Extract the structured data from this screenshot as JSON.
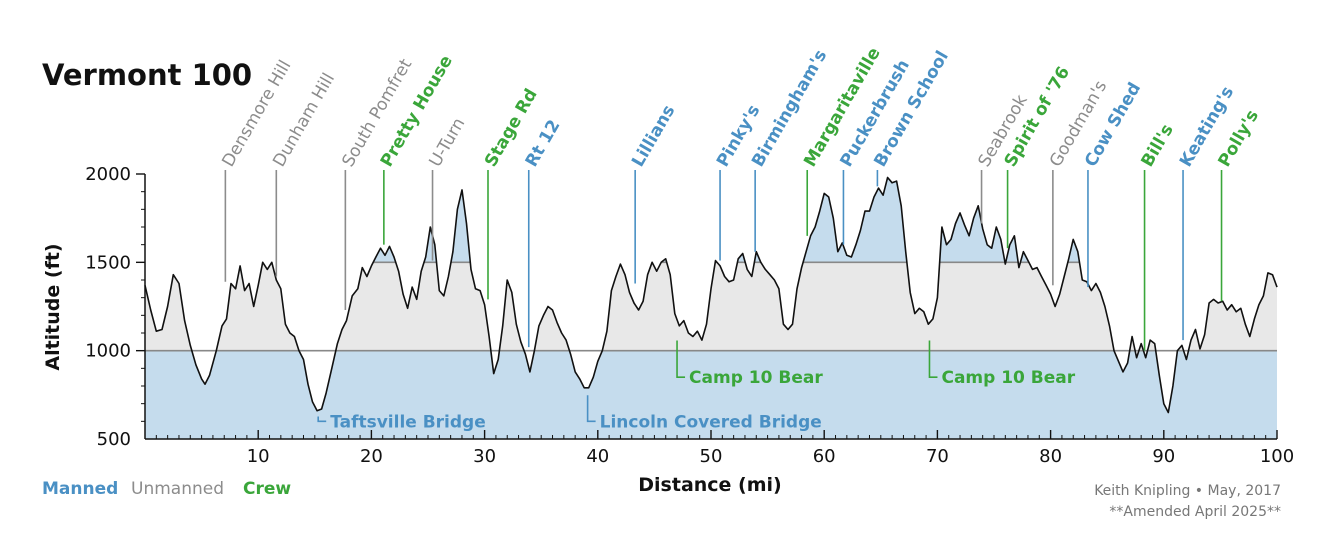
{
  "colors": {
    "manned": "#4a90c4",
    "unmanned": "#8c8c8c",
    "crew": "#3aa63a",
    "below_fill": "#c5dced",
    "mid_fill": "#e8e8e8",
    "above_fill": "#c5dced",
    "threshold_line": "#888888",
    "profile": "#111111"
  },
  "legend": {
    "manned": "Manned",
    "unmanned": "Unmanned",
    "crew": "Crew"
  },
  "credit": {
    "line1": "Keith Knipling • May, 2017",
    "line2": "**Amended April 2025**"
  },
  "chart_data": {
    "type": "area",
    "title": "Vermont 100",
    "xlabel": "Distance  (mi)",
    "ylabel": "Altitude  (ft)",
    "xlim": [
      0,
      100
    ],
    "ylim": [
      500,
      2000
    ],
    "x_ticks": [
      10,
      20,
      30,
      40,
      50,
      60,
      70,
      80,
      90,
      100
    ],
    "y_ticks": [
      500,
      1000,
      1500,
      2000
    ],
    "thresholds": [
      1000,
      1500
    ],
    "grid": false,
    "profile": [
      [
        0,
        1370
      ],
      [
        0.5,
        1230
      ],
      [
        1,
        1110
      ],
      [
        1.5,
        1120
      ],
      [
        2,
        1250
      ],
      [
        2.5,
        1430
      ],
      [
        3,
        1380
      ],
      [
        3.5,
        1170
      ],
      [
        4,
        1030
      ],
      [
        4.5,
        920
      ],
      [
        5,
        840
      ],
      [
        5.3,
        810
      ],
      [
        5.7,
        860
      ],
      [
        6.3,
        1000
      ],
      [
        6.8,
        1140
      ],
      [
        7.2,
        1180
      ],
      [
        7.6,
        1380
      ],
      [
        8,
        1350
      ],
      [
        8.4,
        1480
      ],
      [
        8.8,
        1340
      ],
      [
        9.2,
        1380
      ],
      [
        9.6,
        1250
      ],
      [
        10,
        1370
      ],
      [
        10.4,
        1500
      ],
      [
        10.8,
        1460
      ],
      [
        11.2,
        1500
      ],
      [
        11.6,
        1400
      ],
      [
        12,
        1350
      ],
      [
        12.4,
        1150
      ],
      [
        12.8,
        1100
      ],
      [
        13.2,
        1080
      ],
      [
        13.6,
        1000
      ],
      [
        14,
        950
      ],
      [
        14.4,
        810
      ],
      [
        14.8,
        710
      ],
      [
        15.2,
        660
      ],
      [
        15.6,
        670
      ],
      [
        16,
        760
      ],
      [
        16.5,
        900
      ],
      [
        17,
        1040
      ],
      [
        17.4,
        1120
      ],
      [
        17.8,
        1170
      ],
      [
        18.3,
        1310
      ],
      [
        18.8,
        1350
      ],
      [
        19.2,
        1470
      ],
      [
        19.6,
        1420
      ],
      [
        20,
        1480
      ],
      [
        20.4,
        1530
      ],
      [
        20.8,
        1580
      ],
      [
        21.2,
        1540
      ],
      [
        21.6,
        1590
      ],
      [
        22,
        1530
      ],
      [
        22.4,
        1450
      ],
      [
        22.8,
        1320
      ],
      [
        23.2,
        1240
      ],
      [
        23.6,
        1360
      ],
      [
        24,
        1290
      ],
      [
        24.4,
        1450
      ],
      [
        24.8,
        1530
      ],
      [
        25.2,
        1700
      ],
      [
        25.6,
        1600
      ],
      [
        26,
        1340
      ],
      [
        26.4,
        1310
      ],
      [
        26.8,
        1420
      ],
      [
        27.2,
        1560
      ],
      [
        27.6,
        1800
      ],
      [
        28,
        1910
      ],
      [
        28.4,
        1720
      ],
      [
        28.8,
        1460
      ],
      [
        29.2,
        1350
      ],
      [
        29.6,
        1340
      ],
      [
        30,
        1260
      ],
      [
        30.4,
        1080
      ],
      [
        30.8,
        870
      ],
      [
        31.2,
        950
      ],
      [
        31.6,
        1140
      ],
      [
        32,
        1400
      ],
      [
        32.4,
        1330
      ],
      [
        32.8,
        1150
      ],
      [
        33.2,
        1050
      ],
      [
        33.6,
        980
      ],
      [
        34,
        880
      ],
      [
        34.4,
        1000
      ],
      [
        34.8,
        1140
      ],
      [
        35.2,
        1200
      ],
      [
        35.6,
        1250
      ],
      [
        36,
        1230
      ],
      [
        36.4,
        1160
      ],
      [
        36.8,
        1100
      ],
      [
        37.2,
        1060
      ],
      [
        37.6,
        980
      ],
      [
        38,
        880
      ],
      [
        38.4,
        840
      ],
      [
        38.8,
        790
      ],
      [
        39.2,
        790
      ],
      [
        39.6,
        850
      ],
      [
        40,
        940
      ],
      [
        40.4,
        1000
      ],
      [
        40.8,
        1110
      ],
      [
        41.2,
        1340
      ],
      [
        41.6,
        1420
      ],
      [
        42,
        1490
      ],
      [
        42.4,
        1430
      ],
      [
        42.8,
        1330
      ],
      [
        43.2,
        1270
      ],
      [
        43.6,
        1230
      ],
      [
        44,
        1280
      ],
      [
        44.4,
        1430
      ],
      [
        44.8,
        1500
      ],
      [
        45.2,
        1450
      ],
      [
        45.6,
        1500
      ],
      [
        46,
        1520
      ],
      [
        46.4,
        1430
      ],
      [
        46.8,
        1210
      ],
      [
        47.2,
        1140
      ],
      [
        47.6,
        1170
      ],
      [
        48,
        1100
      ],
      [
        48.4,
        1080
      ],
      [
        48.8,
        1110
      ],
      [
        49.2,
        1060
      ],
      [
        49.6,
        1150
      ],
      [
        50,
        1350
      ],
      [
        50.4,
        1510
      ],
      [
        50.8,
        1480
      ],
      [
        51.2,
        1420
      ],
      [
        51.6,
        1390
      ],
      [
        52,
        1400
      ],
      [
        52.4,
        1520
      ],
      [
        52.8,
        1550
      ],
      [
        53.2,
        1460
      ],
      [
        53.6,
        1420
      ],
      [
        54,
        1560
      ],
      [
        54.4,
        1500
      ],
      [
        54.8,
        1460
      ],
      [
        55.2,
        1430
      ],
      [
        55.6,
        1400
      ],
      [
        56,
        1350
      ],
      [
        56.4,
        1150
      ],
      [
        56.8,
        1120
      ],
      [
        57.2,
        1150
      ],
      [
        57.6,
        1350
      ],
      [
        58,
        1470
      ],
      [
        58.4,
        1560
      ],
      [
        58.8,
        1650
      ],
      [
        59.2,
        1700
      ],
      [
        59.6,
        1790
      ],
      [
        60,
        1890
      ],
      [
        60.4,
        1870
      ],
      [
        60.8,
        1750
      ],
      [
        61.2,
        1560
      ],
      [
        61.6,
        1610
      ],
      [
        62,
        1540
      ],
      [
        62.4,
        1530
      ],
      [
        62.8,
        1600
      ],
      [
        63.2,
        1680
      ],
      [
        63.6,
        1790
      ],
      [
        64,
        1790
      ],
      [
        64.4,
        1870
      ],
      [
        64.8,
        1920
      ],
      [
        65.2,
        1880
      ],
      [
        65.6,
        1980
      ],
      [
        66,
        1950
      ],
      [
        66.4,
        1960
      ],
      [
        66.8,
        1820
      ],
      [
        67.2,
        1560
      ],
      [
        67.6,
        1330
      ],
      [
        68,
        1210
      ],
      [
        68.4,
        1240
      ],
      [
        68.8,
        1220
      ],
      [
        69.2,
        1150
      ],
      [
        69.6,
        1180
      ],
      [
        70,
        1300
      ],
      [
        70.4,
        1700
      ],
      [
        70.8,
        1600
      ],
      [
        71.2,
        1630
      ],
      [
        71.6,
        1720
      ],
      [
        72,
        1780
      ],
      [
        72.4,
        1710
      ],
      [
        72.8,
        1650
      ],
      [
        73.2,
        1750
      ],
      [
        73.6,
        1820
      ],
      [
        74,
        1690
      ],
      [
        74.4,
        1600
      ],
      [
        74.8,
        1580
      ],
      [
        75.2,
        1700
      ],
      [
        75.6,
        1630
      ],
      [
        76,
        1490
      ],
      [
        76.4,
        1600
      ],
      [
        76.8,
        1650
      ],
      [
        77.2,
        1470
      ],
      [
        77.6,
        1560
      ],
      [
        78,
        1510
      ],
      [
        78.4,
        1460
      ],
      [
        78.8,
        1470
      ],
      [
        79.2,
        1420
      ],
      [
        79.6,
        1370
      ],
      [
        80,
        1320
      ],
      [
        80.4,
        1250
      ],
      [
        80.8,
        1320
      ],
      [
        81.2,
        1420
      ],
      [
        81.6,
        1520
      ],
      [
        82,
        1630
      ],
      [
        82.4,
        1560
      ],
      [
        82.8,
        1400
      ],
      [
        83.2,
        1390
      ],
      [
        83.6,
        1340
      ],
      [
        84,
        1380
      ],
      [
        84.4,
        1330
      ],
      [
        84.8,
        1250
      ],
      [
        85.2,
        1140
      ],
      [
        85.6,
        1000
      ],
      [
        86,
        940
      ],
      [
        86.4,
        880
      ],
      [
        86.8,
        930
      ],
      [
        87.2,
        1080
      ],
      [
        87.6,
        960
      ],
      [
        88,
        1040
      ],
      [
        88.4,
        960
      ],
      [
        88.8,
        1060
      ],
      [
        89.2,
        1040
      ],
      [
        89.6,
        860
      ],
      [
        90,
        700
      ],
      [
        90.4,
        650
      ],
      [
        90.8,
        800
      ],
      [
        91.2,
        1000
      ],
      [
        91.6,
        1030
      ],
      [
        92,
        950
      ],
      [
        92.4,
        1060
      ],
      [
        92.8,
        1120
      ],
      [
        93.2,
        1010
      ],
      [
        93.6,
        1090
      ],
      [
        94,
        1270
      ],
      [
        94.4,
        1290
      ],
      [
        94.8,
        1270
      ],
      [
        95.2,
        1280
      ],
      [
        95.6,
        1230
      ],
      [
        96,
        1260
      ],
      [
        96.4,
        1220
      ],
      [
        96.8,
        1240
      ],
      [
        97.2,
        1150
      ],
      [
        97.6,
        1080
      ],
      [
        98,
        1180
      ],
      [
        98.4,
        1260
      ],
      [
        98.8,
        1310
      ],
      [
        99.2,
        1440
      ],
      [
        99.6,
        1430
      ],
      [
        100,
        1360
      ]
    ],
    "stations": [
      {
        "name": "Densmore Hill",
        "mile": 7.1,
        "type": "unmanned",
        "tip_alt": 1390
      },
      {
        "name": "Dunham Hill",
        "mile": 11.6,
        "type": "unmanned",
        "tip_alt": 1420
      },
      {
        "name": "South Pomfret",
        "mile": 17.7,
        "type": "unmanned",
        "tip_alt": 1230
      },
      {
        "name": "Pretty House",
        "mile": 21.1,
        "type": "crew",
        "tip_alt": 1600
      },
      {
        "name": "U-Turn",
        "mile": 25.4,
        "type": "unmanned",
        "tip_alt": 1510
      },
      {
        "name": "Stage Rd",
        "mile": 30.3,
        "type": "crew",
        "tip_alt": 1290
      },
      {
        "name": "Rt 12",
        "mile": 33.9,
        "type": "manned",
        "tip_alt": 1020
      },
      {
        "name": "Lillians",
        "mile": 43.3,
        "type": "manned",
        "tip_alt": 1380
      },
      {
        "name": "Pinky's",
        "mile": 50.8,
        "type": "manned",
        "tip_alt": 1510
      },
      {
        "name": "Birmingham's",
        "mile": 53.9,
        "type": "manned",
        "tip_alt": 1560
      },
      {
        "name": "Margaritaville",
        "mile": 58.5,
        "type": "crew",
        "tip_alt": 1650
      },
      {
        "name": "Puckerbrush",
        "mile": 61.7,
        "type": "manned",
        "tip_alt": 1600
      },
      {
        "name": "Brown School",
        "mile": 64.7,
        "type": "manned",
        "tip_alt": 1930
      },
      {
        "name": "Seabrook",
        "mile": 73.9,
        "type": "unmanned",
        "tip_alt": 1720
      },
      {
        "name": "Spirit of '76",
        "mile": 76.2,
        "type": "crew",
        "tip_alt": 1580
      },
      {
        "name": "Goodman's",
        "mile": 80.2,
        "type": "unmanned",
        "tip_alt": 1370
      },
      {
        "name": "Cow Shed",
        "mile": 83.3,
        "type": "manned",
        "tip_alt": 1360
      },
      {
        "name": "Bill's",
        "mile": 88.3,
        "type": "crew",
        "tip_alt": 1000
      },
      {
        "name": "Keating's",
        "mile": 91.7,
        "type": "manned",
        "tip_alt": 1060
      },
      {
        "name": "Polly's",
        "mile": 95.1,
        "type": "crew",
        "tip_alt": 1280
      }
    ],
    "low_stations": [
      {
        "name": "Taftsville Bridge",
        "mile": 15.3,
        "type": "manned",
        "start_alt": 650,
        "label_alt": 600
      },
      {
        "name": "Lincoln Covered Bridge",
        "mile": 39.1,
        "type": "manned",
        "start_alt": 770,
        "label_alt": 600
      },
      {
        "name": "Camp 10 Bear",
        "mile": 47.0,
        "type": "crew",
        "start_alt": 1080,
        "label_alt": 850
      },
      {
        "name": "Camp 10 Bear",
        "mile": 69.3,
        "type": "crew",
        "start_alt": 1080,
        "label_alt": 850
      }
    ]
  }
}
